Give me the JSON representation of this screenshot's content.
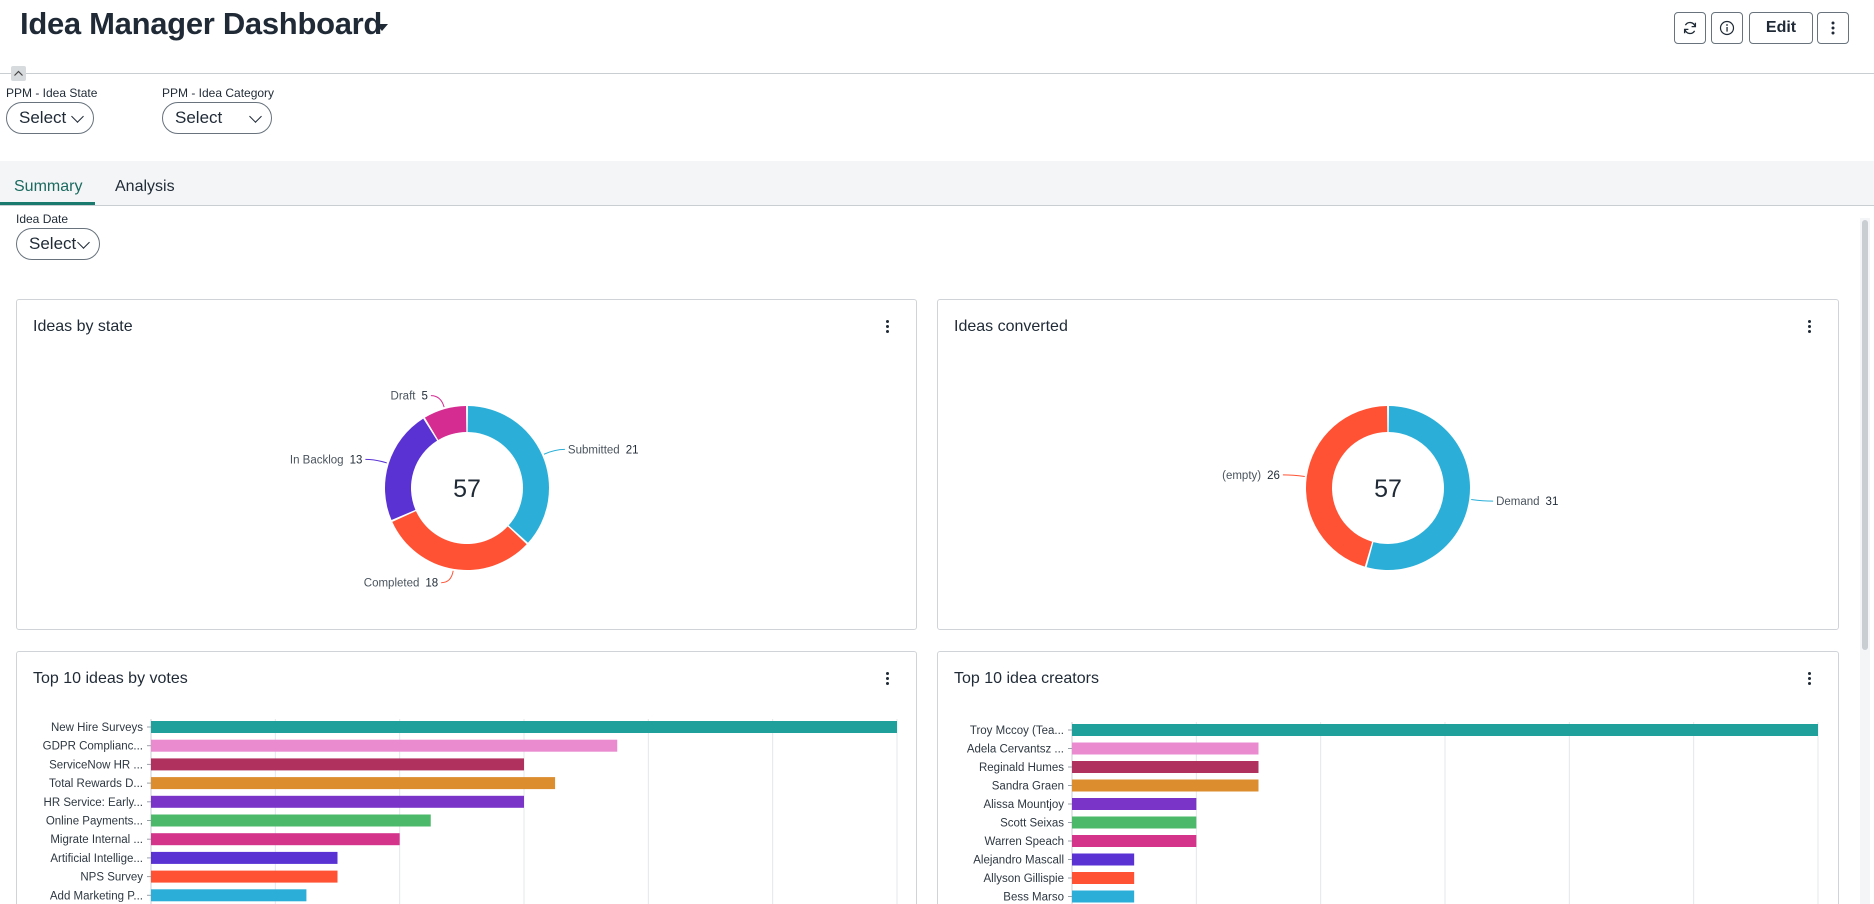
{
  "header": {
    "title": "Idea Manager Dashboard",
    "edit_label": "Edit"
  },
  "filters": [
    {
      "label": "PPM - Idea State",
      "value": "Select"
    },
    {
      "label": "PPM - Idea Category",
      "value": "Select"
    }
  ],
  "tabs": [
    {
      "label": "Summary",
      "active": true
    },
    {
      "label": "Analysis",
      "active": false
    }
  ],
  "date_filter": {
    "label": "Idea Date",
    "value": "Select"
  },
  "colors": {
    "accent": "#1a7a6e"
  },
  "icons": {
    "refresh": "refresh-icon",
    "info": "info-icon",
    "more": "more-vertical-icon"
  },
  "cards": {
    "ideas_by_state": {
      "title": "Ideas by state"
    },
    "ideas_converted": {
      "title": "Ideas converted"
    },
    "top_votes": {
      "title": "Top 10 ideas by votes"
    },
    "top_creators": {
      "title": "Top 10 idea creators"
    }
  },
  "chart_data": [
    {
      "type": "pie",
      "total": "57",
      "categories": [
        "Submitted",
        "Completed",
        "In Backlog",
        "Draft"
      ],
      "values": [
        21,
        18,
        13,
        5
      ],
      "colors": [
        "#2bafd8",
        "#ff5234",
        "#5a32d4",
        "#d52c92"
      ]
    },
    {
      "type": "pie",
      "total": "57",
      "categories": [
        "Demand",
        "(empty)"
      ],
      "values": [
        31,
        26
      ],
      "colors": [
        "#2bafd8",
        "#ff5234"
      ]
    },
    {
      "type": "bar",
      "orientation": "horizontal",
      "categories": [
        "New Hire Surveys",
        "GDPR Complianc...",
        "ServiceNow HR ...",
        "Total Rewards D...",
        "HR Service: Early...",
        "Online Payments...",
        "Migrate Internal ...",
        "Artificial Intellige...",
        "NPS Survey",
        "Add Marketing P..."
      ],
      "values": [
        24,
        15,
        12,
        13,
        12,
        9,
        8,
        6,
        6,
        5
      ],
      "xlim": [
        0,
        24
      ],
      "colors": [
        "#1fa09a",
        "#ea8bd0",
        "#b0305e",
        "#dc8e2e",
        "#7a35c8",
        "#4cb86a",
        "#d4358b",
        "#5a32d4",
        "#ff5234",
        "#2bafd8"
      ]
    },
    {
      "type": "bar",
      "orientation": "horizontal",
      "categories": [
        "Troy Mccoy (Tea...",
        "Adela Cervantsz ...",
        "Reginald Humes",
        "Sandra Graen",
        "Alissa Mountjoy",
        "Scott Seixas",
        "Warren Speach",
        "Alejandro Mascall",
        "Allyson Gillispie",
        "Bess Marso"
      ],
      "values": [
        12,
        3,
        3,
        3,
        2,
        2,
        2,
        1,
        1,
        1
      ],
      "xlim": [
        0,
        12
      ],
      "colors": [
        "#1fa09a",
        "#ea8bd0",
        "#b0305e",
        "#dc8e2e",
        "#7a35c8",
        "#4cb86a",
        "#d4358b",
        "#5a32d4",
        "#ff5234",
        "#2bafd8"
      ]
    }
  ]
}
